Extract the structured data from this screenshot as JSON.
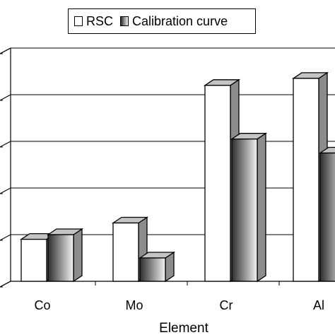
{
  "chart_data": {
    "type": "bar",
    "categories": [
      "Co",
      "Mo",
      "Cr",
      "Al"
    ],
    "series": [
      {
        "name": "RSC",
        "values": [
          0.9,
          1.25,
          4.2,
          4.35
        ],
        "style": "white"
      },
      {
        "name": "Calibration curve",
        "values": [
          1.0,
          0.5,
          3.05,
          2.75
        ],
        "style": "gradient"
      }
    ],
    "xlabel": "Element",
    "ylabel": "",
    "ylim": [
      0,
      5
    ],
    "yticks": [
      0,
      1,
      2,
      3,
      4,
      5
    ],
    "grid": true,
    "legend_position": "top"
  },
  "colors": {
    "bar_fill": "#ffffff",
    "bar_edge": "#000000",
    "side": "#8c8c8c",
    "top": "#c4c4c4",
    "grid": "#000000"
  }
}
